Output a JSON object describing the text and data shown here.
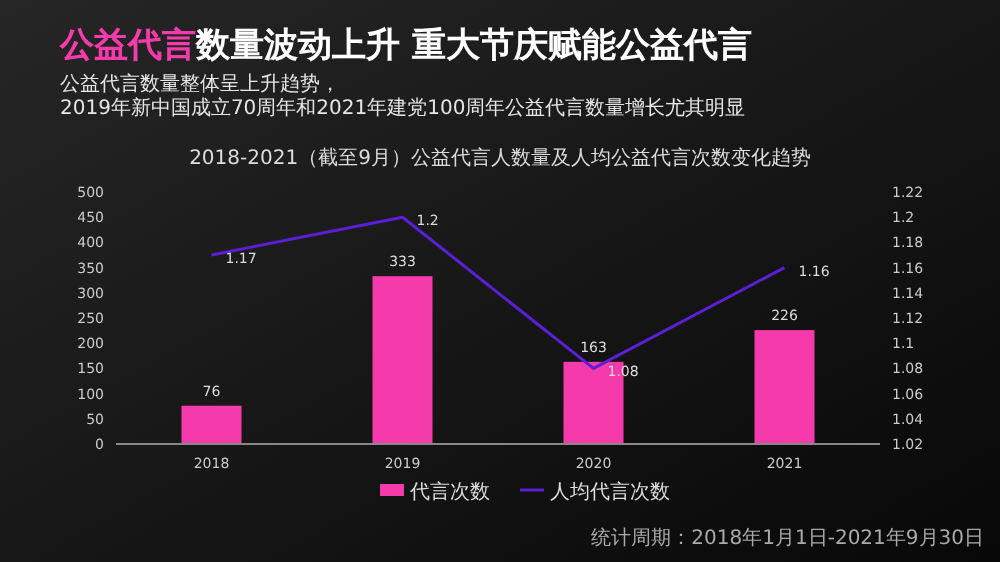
{
  "chart_data": {
    "type": "bar",
    "title": "公益代言数量波动上升 重大节庆赋能公益代言",
    "subtitle": "2018-2021（截至9月）公益代言人数量及人均公益代言次数变化趋势",
    "annotations": [
      "公益代言数量整体呈上升趋势，2019年新中国成立70周年和2021年建党100周年公益代言数量增长尤其明显",
      "统计周期：2018年1月1日-2021年9月30日"
    ],
    "categories": [
      "2018",
      "2019",
      "2020",
      "2021"
    ],
    "series": [
      {
        "name": "代言次数",
        "color": "#f53aab",
        "values": [
          76,
          333,
          163,
          226
        ]
      },
      {
        "name": "人均代言次数",
        "type": "line",
        "axis": "y2",
        "color": "#5b1fd6",
        "values": [
          1.17,
          1.2,
          1.08,
          1.16
        ]
      }
    ],
    "ylim": [
      0,
      500
    ],
    "yticks": [
      0,
      50,
      100,
      150,
      200,
      250,
      300,
      350,
      400,
      450,
      500
    ],
    "y2lim": [
      1.02,
      1.22
    ],
    "y2ticks": [
      1.02,
      1.04,
      1.06,
      1.08,
      1.1,
      1.12,
      1.14,
      1.16,
      1.18,
      1.2,
      1.22
    ],
    "data_labels": true,
    "legend": "bottom",
    "grid": false
  }
}
